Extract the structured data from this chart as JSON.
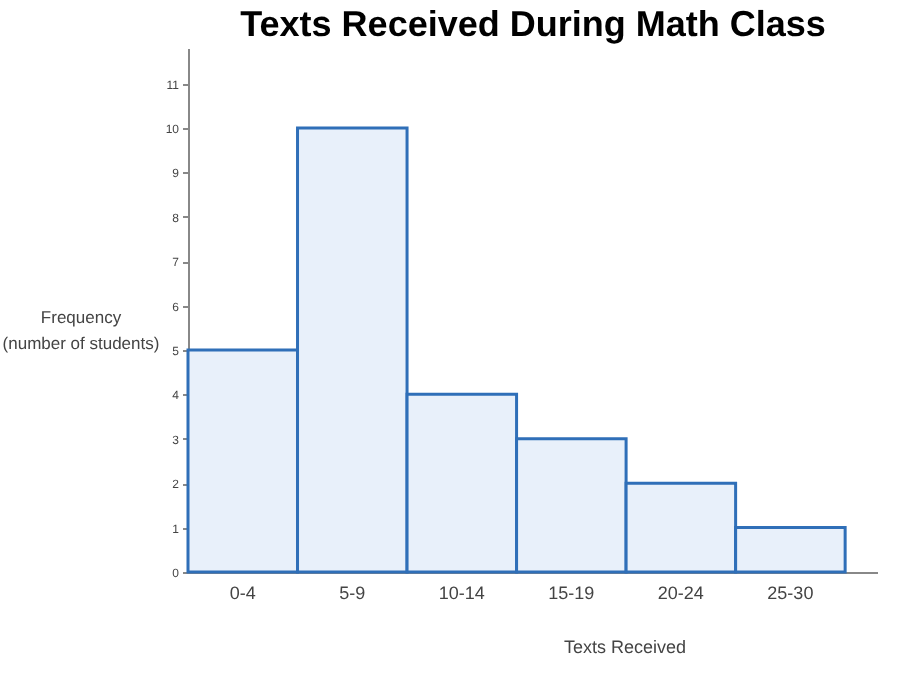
{
  "chart_data": {
    "type": "bar",
    "title": "Texts Received During Math Class",
    "xlabel": "Texts Received",
    "ylabel": "Frequency\n(number of students)",
    "categories": [
      "0-4",
      "5-9",
      "10-14",
      "15-19",
      "20-24",
      "25-30"
    ],
    "values": [
      5,
      10,
      4,
      3,
      2,
      1
    ],
    "color": "#e8f0fa",
    "ylim": [
      0,
      11.8
    ],
    "yticks": [
      0,
      1,
      2,
      3,
      4,
      5,
      6,
      7,
      8,
      9,
      10,
      11
    ],
    "grid": false
  }
}
